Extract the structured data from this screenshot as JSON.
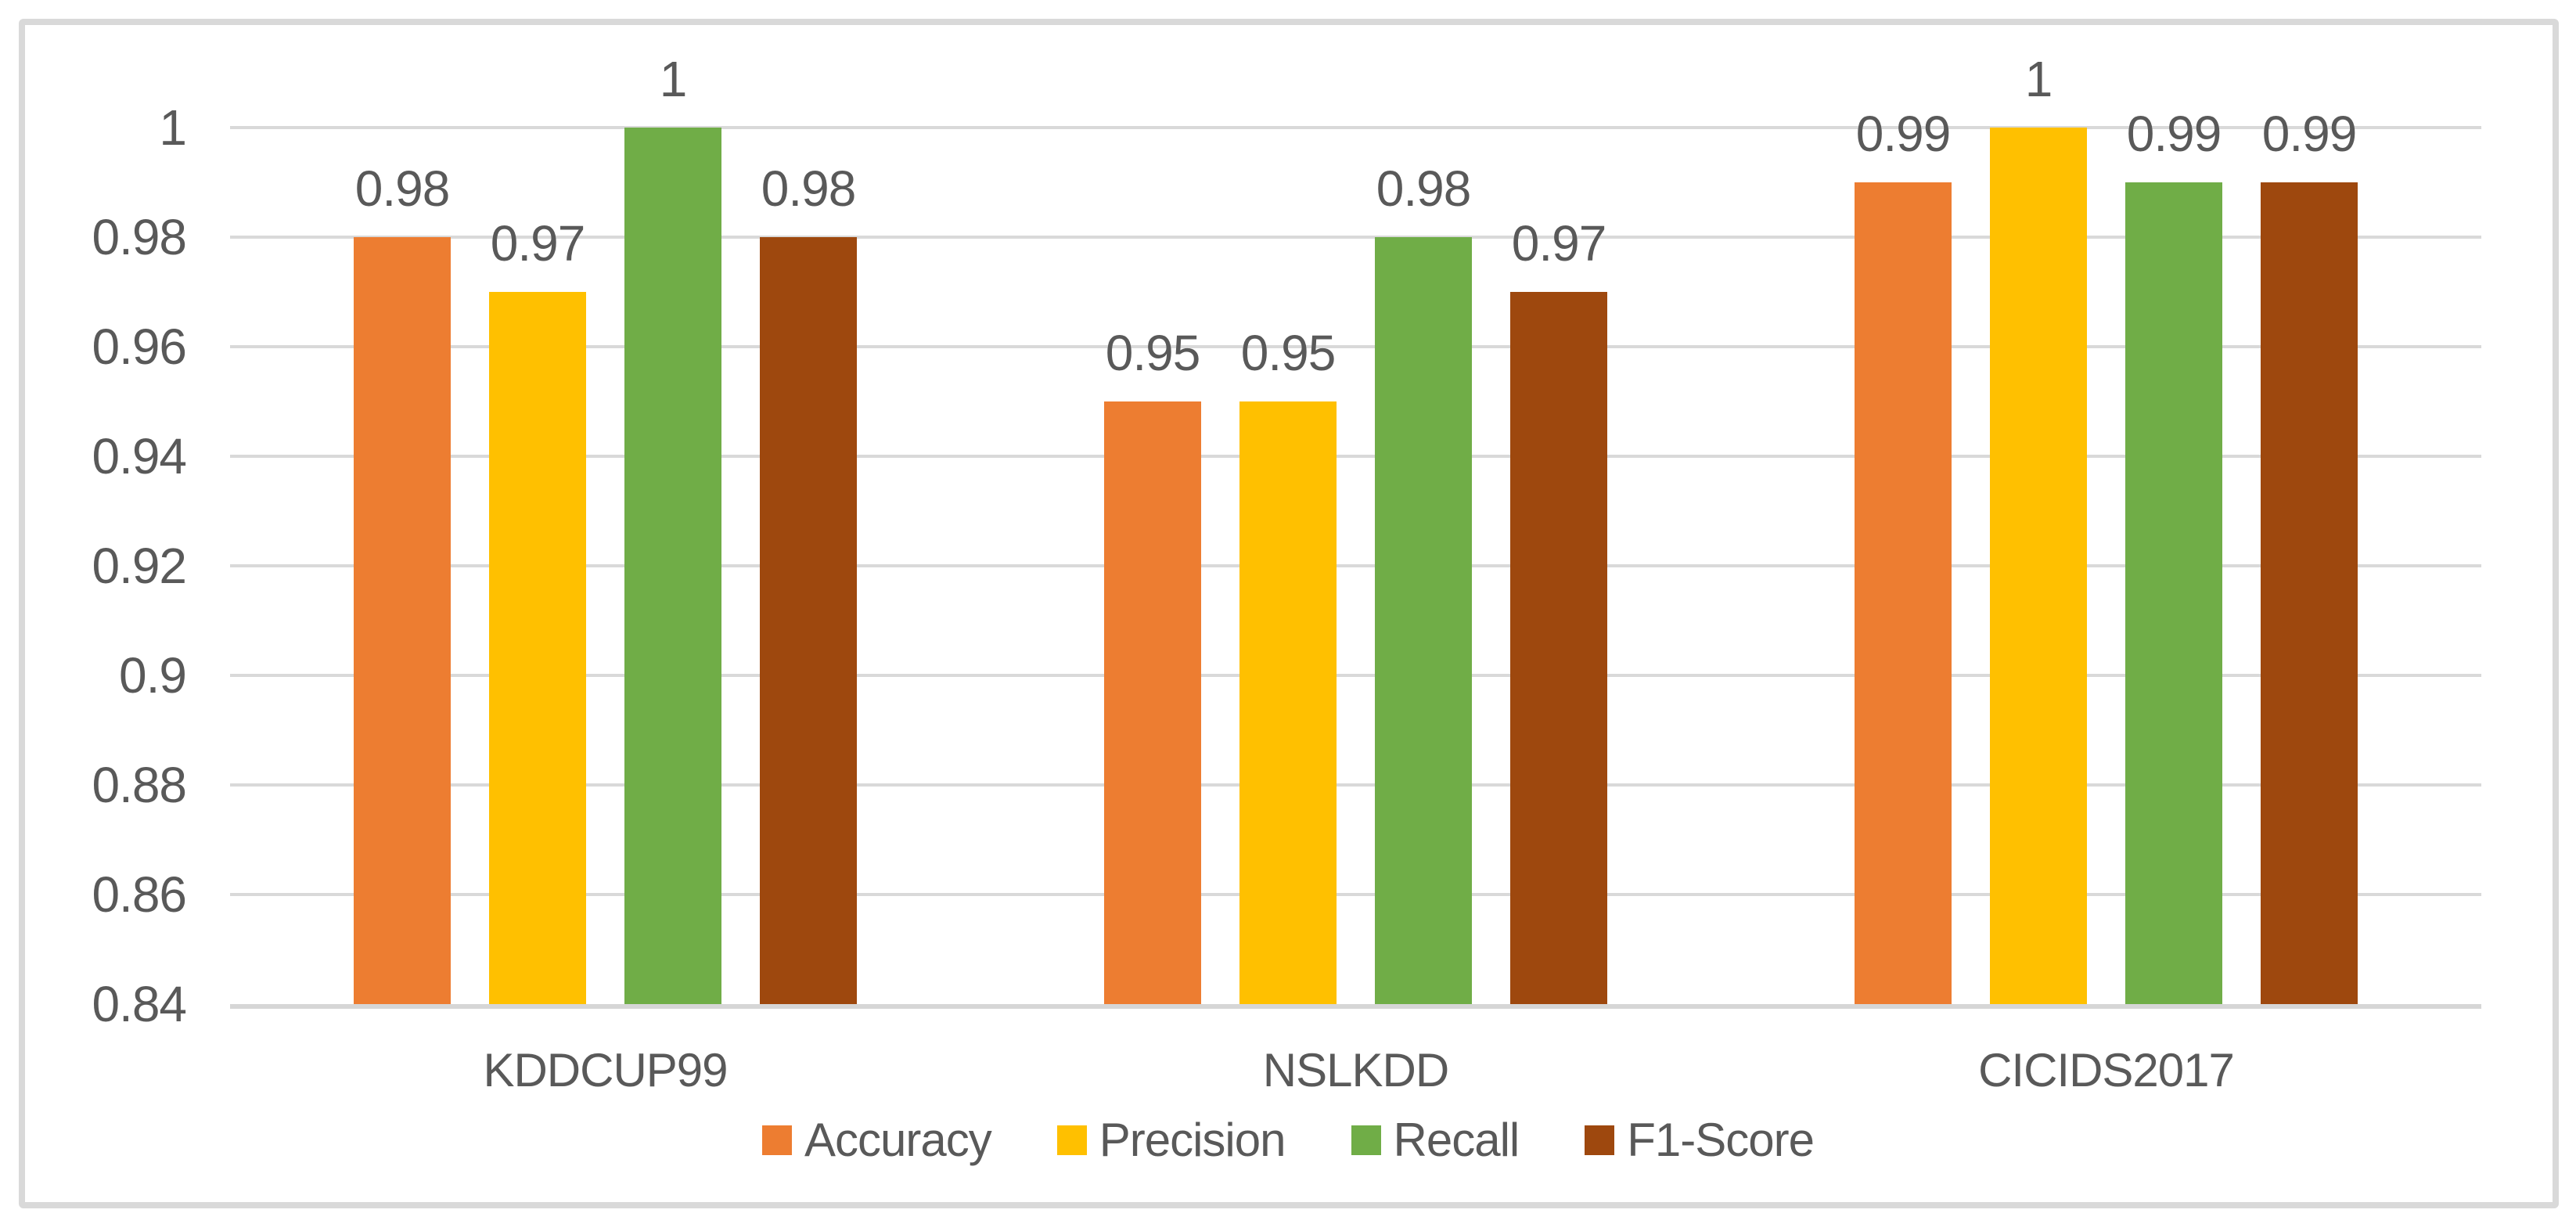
{
  "chart_data": {
    "type": "bar",
    "title": "",
    "categories": [
      "KDDCUP99",
      "NSLKDD",
      "CICIDS2017"
    ],
    "series": [
      {
        "name": "Accuracy",
        "color": "#ED7D31",
        "values": [
          0.98,
          0.95,
          0.99
        ]
      },
      {
        "name": "Precision",
        "color": "#FFC000",
        "values": [
          0.97,
          0.95,
          1
        ]
      },
      {
        "name": "Recall",
        "color": "#70AD47",
        "values": [
          1,
          0.98,
          0.99
        ]
      },
      {
        "name": "F1-Score",
        "color": "#9E480E",
        "values": [
          0.98,
          0.97,
          0.99
        ]
      }
    ],
    "data_labels": [
      [
        "0.98",
        "0.97",
        "1",
        "0.98"
      ],
      [
        "0.95",
        "0.95",
        "0.98",
        "0.97"
      ],
      [
        "0.99",
        "1",
        "0.99",
        "0.99"
      ]
    ],
    "y_axis": {
      "min": 0.84,
      "max": 1.0,
      "step": 0.02,
      "tick_labels": [
        "1",
        "0.98",
        "0.96",
        "0.94",
        "0.92",
        "0.9",
        "0.88",
        "0.86",
        "0.84"
      ]
    },
    "xlabel": "",
    "ylabel": "",
    "grid": true,
    "legend_position": "bottom",
    "legend_labels": [
      "Accuracy",
      "Precision",
      "Recall",
      "F1-Score"
    ],
    "colors": {
      "gridline": "#D9D9D9",
      "axis_text": "#595959",
      "frame_border": "#D9D9D9",
      "background": "#FFFFFF"
    }
  }
}
